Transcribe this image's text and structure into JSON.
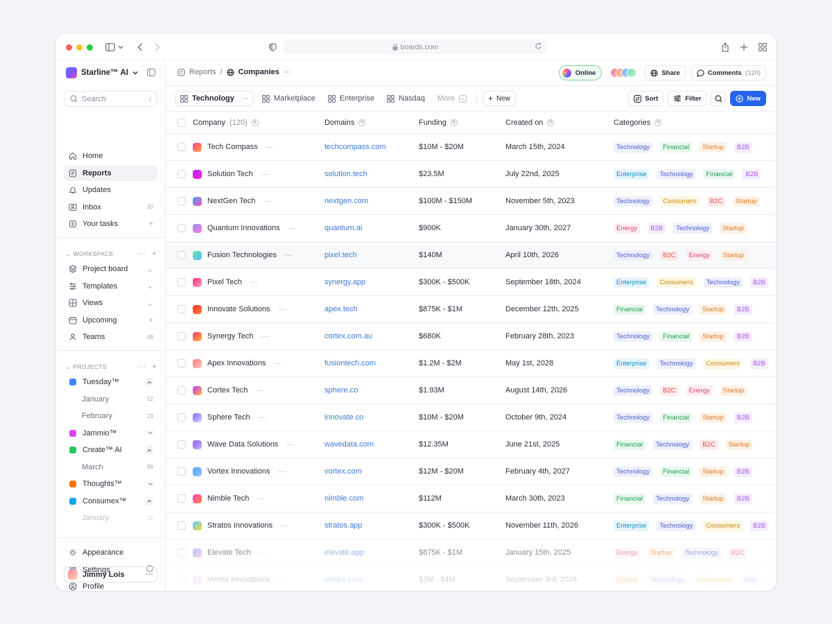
{
  "browser": {
    "url": "boards.com"
  },
  "sidebar": {
    "brand": "Starline™ AI",
    "search_placeholder": "Search",
    "search_shortcut": "/",
    "main_nav": [
      {
        "label": "Home",
        "icon": "home-icon"
      },
      {
        "label": "Reports",
        "icon": "reports-icon",
        "active": true
      },
      {
        "label": "Updates",
        "icon": "bell-icon"
      },
      {
        "label": "Inbox",
        "icon": "inbox-icon",
        "badge": "20"
      },
      {
        "label": "Your tasks",
        "icon": "tasks-icon",
        "action": "+"
      }
    ],
    "workspace_label": "WORKSPACE",
    "workspace": [
      {
        "label": "Project board",
        "icon": "layers-icon",
        "action": "⌄"
      },
      {
        "label": "Templates",
        "icon": "templates-icon",
        "action": "⌄"
      },
      {
        "label": "Views",
        "icon": "views-icon",
        "action": "⌄"
      },
      {
        "label": "Upcoming",
        "icon": "calendar-icon",
        "action": "+"
      },
      {
        "label": "Teams",
        "icon": "teams-icon",
        "badge": "48"
      }
    ],
    "projects_label": "PROJECTS",
    "projects": [
      {
        "label": "Tuesday™",
        "color": "#3b82f6",
        "expanded": true
      },
      {
        "label": "January",
        "sub": true,
        "badge": "12"
      },
      {
        "label": "February",
        "sub": true,
        "badge": "23"
      },
      {
        "label": "Jammio™",
        "color": "#d946ef"
      },
      {
        "label": "Create™ AI",
        "color": "#22c55e",
        "expanded": true
      },
      {
        "label": "March",
        "sub": true,
        "badge": "99"
      },
      {
        "label": "Thoughts™",
        "color": "#f97316"
      },
      {
        "label": "Consumex™",
        "color": "#0ea5e9",
        "expanded": true
      },
      {
        "label": "January",
        "sub": true,
        "badge": "12",
        "faded": true
      }
    ],
    "bottom": [
      {
        "label": "Appearance",
        "icon": "sun-icon"
      },
      {
        "label": "Settings",
        "icon": "sliders-icon"
      },
      {
        "label": "Profile",
        "icon": "profile-icon"
      }
    ],
    "user": "Jimmy Lois"
  },
  "topbar": {
    "breadcrumb_parent": "Reports",
    "breadcrumb_current": "Companies",
    "status": "Online",
    "share": "Share",
    "comments": "Comments",
    "comments_count": "(120)"
  },
  "tabs": [
    {
      "label": "Technology",
      "active": true
    },
    {
      "label": "Marketplace"
    },
    {
      "label": "Enterprise"
    },
    {
      "label": "Nasdaq"
    }
  ],
  "tab_more": "More",
  "tab_new": "New",
  "tools": {
    "sort": "Sort",
    "filter": "Filter",
    "new": "New"
  },
  "columns": {
    "company": "Company",
    "company_count": "(120)",
    "domains": "Domains",
    "funding": "Funding",
    "created": "Created on",
    "categories": "Categories"
  },
  "tag_colors": {
    "Technology": {
      "bg": "#eef0fb",
      "fg": "#4f5bd5"
    },
    "Financial": {
      "bg": "#e8f8ee",
      "fg": "#1f9d55"
    },
    "Startup": {
      "bg": "#fdf1e6",
      "fg": "#e07b24"
    },
    "B2B": {
      "bg": "#f6ecfc",
      "fg": "#a855f7"
    },
    "Enterprise": {
      "bg": "#e7f5fb",
      "fg": "#0e8fc4"
    },
    "Consumers": {
      "bg": "#fdf6e3",
      "fg": "#c98a0a"
    },
    "B2C": {
      "bg": "#fdecec",
      "fg": "#e04848"
    },
    "Energy": {
      "bg": "#fdeef3",
      "fg": "#e0457b"
    }
  },
  "rows": [
    {
      "name": "Tech Compass",
      "domain": "techcompass.com",
      "funding": "$10M - $20M",
      "created": "March 15th, 2024",
      "tags": [
        "Technology",
        "Financial",
        "Startup",
        "B2B"
      ],
      "logo": [
        "#ff3d9a",
        "#ffb23d"
      ]
    },
    {
      "name": "Solution Tech",
      "domain": "solution.tech",
      "funding": "$23.5M",
      "created": "July 22nd, 2025",
      "tags": [
        "Enterprise",
        "Technology",
        "Financial",
        "B2B"
      ],
      "logo": [
        "#b21dff",
        "#ff2bd0"
      ]
    },
    {
      "name": "NextGen Tech",
      "domain": "nextgen.com",
      "funding": "$100M - $150M",
      "created": "November 5th, 2023",
      "tags": [
        "Technology",
        "Consumers",
        "B2C",
        "Startup"
      ],
      "logo": [
        "#3da5ff",
        "#ff4fb0"
      ]
    },
    {
      "name": "Quantum Innovations",
      "domain": "quantum.ai",
      "funding": "$900K",
      "created": "January 30th, 2027",
      "tags": [
        "Energy",
        "B2B",
        "Technology",
        "Startup"
      ],
      "logo": [
        "#9b8cff",
        "#ff7fd0"
      ]
    },
    {
      "name": "Fusion Technologies",
      "domain": "pixel.tech",
      "funding": "$140M",
      "created": "April 10th, 2026",
      "tags": [
        "Technology",
        "B2C",
        "Energy",
        "Startup"
      ],
      "logo": [
        "#5ee6a8",
        "#5fb8ff"
      ],
      "highlight": true
    },
    {
      "name": "Pixel Tech",
      "domain": "synergy.app",
      "funding": "$300K - $500K",
      "created": "September 18th, 2024",
      "tags": [
        "Enterprise",
        "Consumers",
        "Technology",
        "B2B"
      ],
      "logo": [
        "#ff2d6f",
        "#ff9fcf"
      ]
    },
    {
      "name": "Innovate Solutions",
      "domain": "apex.tech",
      "funding": "$875K - $1M",
      "created": "December 12th, 2025",
      "tags": [
        "Financial",
        "Technology",
        "Startup",
        "B2B"
      ],
      "logo": [
        "#ff2d2d",
        "#ff8a3d"
      ]
    },
    {
      "name": "Synergy Tech",
      "domain": "cortex.com.au",
      "funding": "$680K",
      "created": "February 28th, 2023",
      "tags": [
        "Technology",
        "Financial",
        "Startup",
        "B2B"
      ],
      "logo": [
        "#ff3d6e",
        "#ffb03d"
      ]
    },
    {
      "name": "Apex Innovations",
      "domain": "fusiontech.com",
      "funding": "$1.2M - $2M",
      "created": "May 1st, 2028",
      "tags": [
        "Enterprise",
        "Technology",
        "Consumers",
        "B2B"
      ],
      "logo": [
        "#ff7b7b",
        "#ffc2c2"
      ]
    },
    {
      "name": "Cortex Tech",
      "domain": "sphere.co",
      "funding": "$1.93M",
      "created": "August 14th, 2026",
      "tags": [
        "Technology",
        "B2C",
        "Energy",
        "Startup"
      ],
      "logo": [
        "#b83dff",
        "#ffb03d"
      ]
    },
    {
      "name": "Sphere Tech",
      "domain": "innovate.co",
      "funding": "$10M - $20M",
      "created": "October 9th, 2024",
      "tags": [
        "Technology",
        "Financial",
        "Startup",
        "B2B"
      ],
      "logo": [
        "#7a6bff",
        "#d7d2ff"
      ]
    },
    {
      "name": "Wave Data Solutions",
      "domain": "wavedata.com",
      "funding": "$12.35M",
      "created": "June 21st, 2025",
      "tags": [
        "Financial",
        "Technology",
        "B2C",
        "Startup"
      ],
      "logo": [
        "#8a5cf0",
        "#c7b6ff"
      ]
    },
    {
      "name": "Vortex Innovations",
      "domain": "vortex.com",
      "funding": "$12M - $20M",
      "created": "February 4th, 2027",
      "tags": [
        "Technology",
        "Financial",
        "Startup",
        "B2B"
      ],
      "logo": [
        "#4fa3ff",
        "#9bc9ff"
      ]
    },
    {
      "name": "Nimble Tech",
      "domain": "nimble.com",
      "funding": "$112M",
      "created": "March 30th, 2023",
      "tags": [
        "Financial",
        "Technology",
        "Startup",
        "B2B"
      ],
      "logo": [
        "#ff3dc4",
        "#ff8a3d"
      ]
    },
    {
      "name": "Stratos Innovations",
      "domain": "stratos.app",
      "funding": "$300K - $500K",
      "created": "November 11th, 2026",
      "tags": [
        "Enterprise",
        "Technology",
        "Consumers",
        "B2B"
      ],
      "logo": [
        "#5fd0ff",
        "#ffd23d"
      ]
    },
    {
      "name": "Elevate Tech",
      "domain": "elevate.app",
      "funding": "$875K - $1M",
      "created": "January 15th, 2025",
      "tags": [
        "Energy",
        "Startup",
        "Technology",
        "B2C"
      ],
      "logo": [
        "#7aa6ff",
        "#ff9fd6"
      ],
      "fade": 0.55
    },
    {
      "name": "Vertex Innovations",
      "domain": "vertex.com",
      "funding": "$3M - $4M",
      "created": "September 3rd, 2024",
      "tags": [
        "Startup",
        "Technology",
        "Consumers",
        "B2B"
      ],
      "logo": [
        "#c7b6ff",
        "#ffd2f0"
      ],
      "fade": 0.22
    }
  ]
}
